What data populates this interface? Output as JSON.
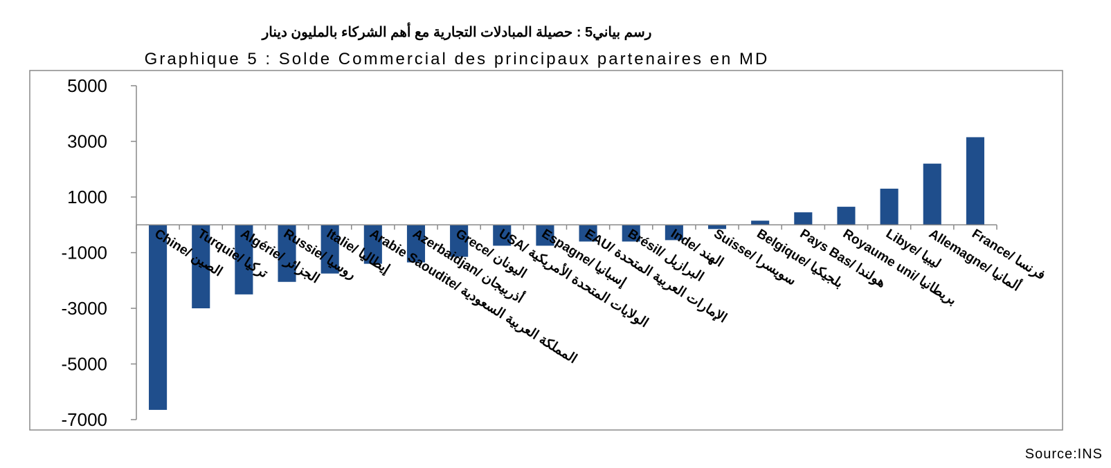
{
  "chart_data": {
    "type": "bar",
    "title_ar": "رسم بياني5 : حصيلة المبادلات التجارية مع أهم الشركاء بالمليون دينار",
    "title_fr": "Graphique 5 : Solde Commercial des principaux partenaires en MD",
    "source": "Source:INS",
    "ylim": [
      -7000,
      5000
    ],
    "yticks": [
      5000,
      3000,
      1000,
      -1000,
      -3000,
      -5000,
      -7000
    ],
    "grid": false,
    "legend": "none",
    "bar_color": "#1f4e8c",
    "categories": [
      "Chine/ الصين",
      "Turquie/ تركيا",
      "Algérie/ الجزائر",
      "Russie/ روسيا",
      "Italie/ إيطاليا",
      "Arabie Saoudite/ المملكة العربية السعودية",
      "Azerbaidjan/ أذربيجان",
      "Grece/ اليونان",
      "USA/ الولايات المتحدة الأمريكية",
      "Espagne/ إسبانيا",
      "EAU/ الإمارات العربية المتحدة",
      "Brésil/ البرازيل",
      "Inde/ الهند",
      "Suisse/ سويسرا",
      "Belgique/ بلجيكيا",
      "Pays Bas/ هولندا",
      "Royaume uni/ بريطانيا",
      "Libye/ ليبيا",
      "Allemagne/ ألمانيا",
      "France/ فرنسا"
    ],
    "values": [
      -6650,
      -3000,
      -2500,
      -2050,
      -1750,
      -1400,
      -1350,
      -1150,
      -750,
      -750,
      -600,
      -600,
      -550,
      -150,
      150,
      450,
      650,
      1300,
      2200,
      3150
    ]
  }
}
